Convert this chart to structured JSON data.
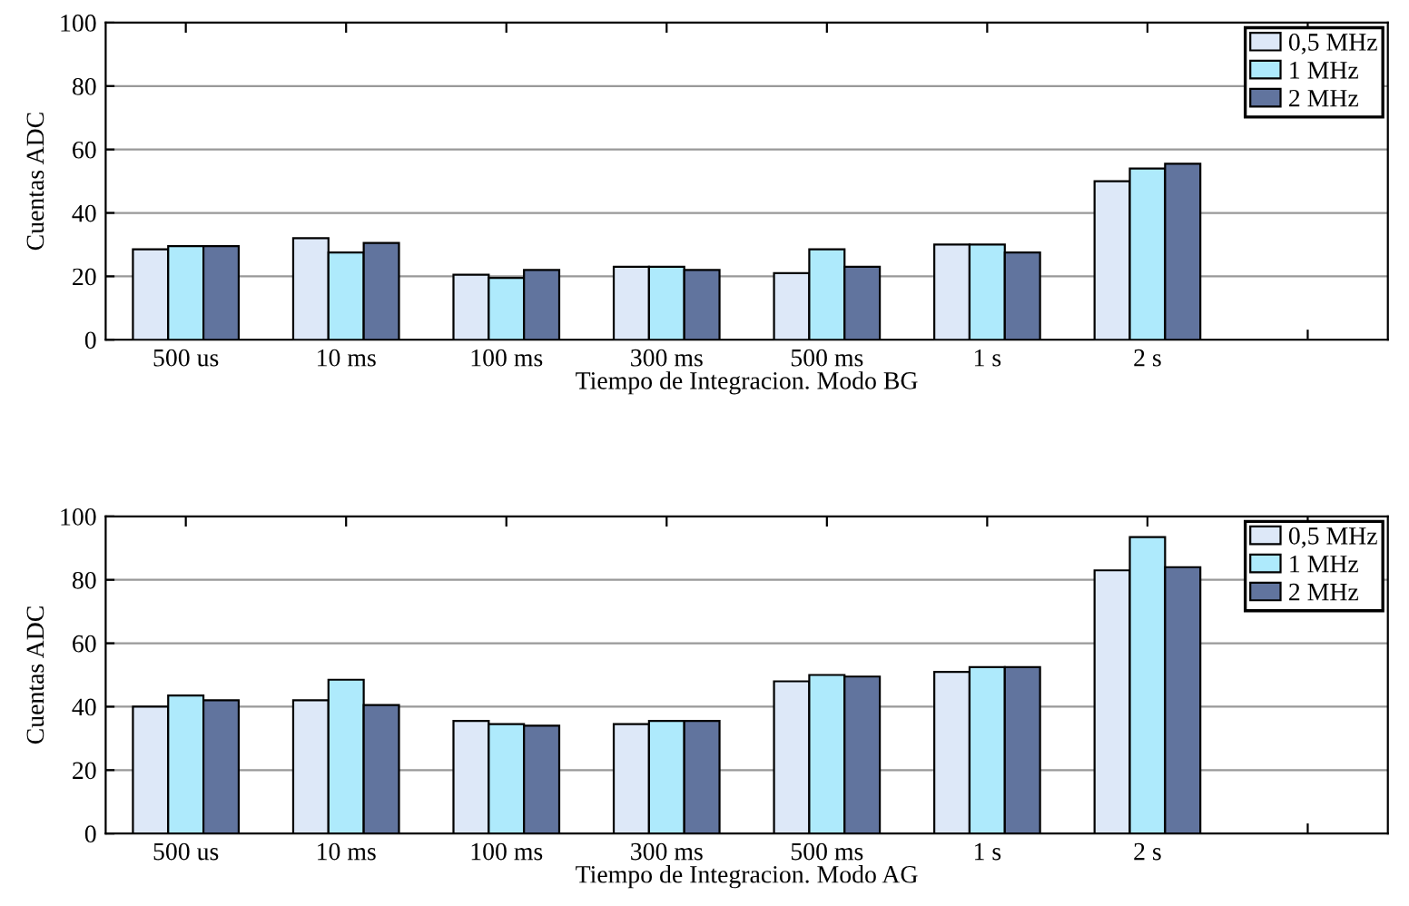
{
  "chart_data": [
    {
      "type": "bar",
      "xlabel": "Tiempo de Integracion. Modo BG",
      "ylabel": "Cuentas ADC",
      "categories": [
        "500 us",
        "10 ms",
        "100 ms",
        "300 ms",
        "500 ms",
        "1 s",
        "2 s",
        null
      ],
      "series": [
        {
          "name": "0,5 MHz",
          "color": "#dde8f8",
          "values": [
            28.5,
            32,
            20.5,
            23,
            21,
            30,
            50,
            null
          ]
        },
        {
          "name": "1 MHz",
          "color": "#aeeafc",
          "values": [
            29.5,
            27.5,
            19.5,
            23,
            28.5,
            30,
            54,
            null
          ]
        },
        {
          "name": "2 MHz",
          "color": "#61749e",
          "values": [
            29.5,
            30.5,
            22,
            22,
            23,
            27.5,
            55.5,
            null
          ]
        }
      ],
      "ylim": [
        0,
        100
      ],
      "yticks": [
        0,
        20,
        40,
        60,
        80,
        100
      ],
      "grid": "y",
      "legend": "top right"
    },
    {
      "type": "bar",
      "xlabel": "Tiempo de Integracion. Modo AG",
      "ylabel": "Cuentas ADC",
      "categories": [
        "500 us",
        "10 ms",
        "100 ms",
        "300 ms",
        "500 ms",
        "1 s",
        "2 s",
        null
      ],
      "series": [
        {
          "name": "0,5 MHz",
          "color": "#dde8f8",
          "values": [
            40,
            42,
            35.5,
            34.5,
            48,
            51,
            83,
            null
          ]
        },
        {
          "name": "1 MHz",
          "color": "#aeeafc",
          "values": [
            43.5,
            48.5,
            34.5,
            35.5,
            50,
            52.5,
            93.5,
            null
          ]
        },
        {
          "name": "2 MHz",
          "color": "#61749e",
          "values": [
            42,
            40.5,
            34,
            35.5,
            49.5,
            52.5,
            84,
            null
          ]
        }
      ],
      "ylim": [
        0,
        100
      ],
      "yticks": [
        0,
        20,
        40,
        60,
        80,
        100
      ],
      "grid": "y",
      "legend": "top right"
    }
  ]
}
